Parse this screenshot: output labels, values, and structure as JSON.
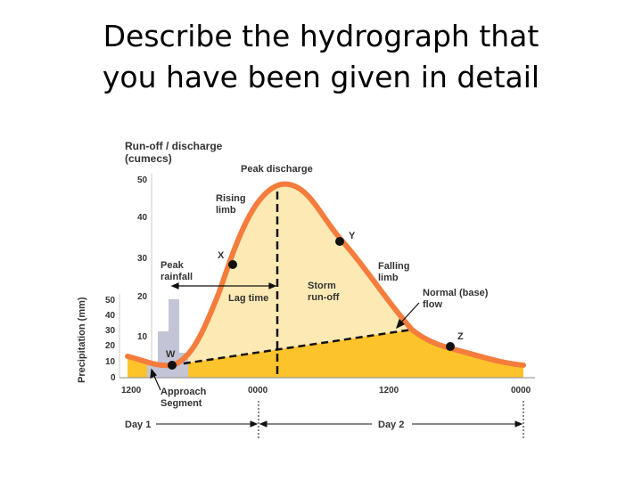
{
  "title_line1": "Describe the hydrograph that",
  "title_line2": "you have been given in detail",
  "y_axis_label_1": "Run-off / discharge",
  "y_axis_label_2": "(cumecs)",
  "y_axis_precip": "Precipitation (mm)",
  "discharge_ticks": [
    "50",
    "40",
    "30",
    "20",
    "10"
  ],
  "precip_ticks": [
    "50",
    "40",
    "30",
    "20",
    "10",
    "0"
  ],
  "x_ticks": [
    "1200",
    "0000",
    "1200",
    "0000"
  ],
  "days": [
    "Day 1",
    "Day 2"
  ],
  "labels": {
    "peak_discharge": "Peak discharge",
    "rising_1": "Rising",
    "rising_2": "limb",
    "falling_1": "Falling",
    "falling_2": "limb",
    "peak_rain_1": "Peak",
    "peak_rain_2": "rainfall",
    "lag_time": "Lag time",
    "storm_1": "Storm",
    "storm_2": "run-off",
    "base_1": "Normal (base)",
    "base_2": "flow",
    "approach_1": "Approach",
    "approach_2": "Segment"
  },
  "points": {
    "w": "W",
    "x": "X",
    "y": "Y",
    "z": "Z"
  },
  "colors": {
    "curve": "#f47c3c",
    "storm_fill": "#fde9b4",
    "base_fill": "#fdc32a",
    "rain": "#c3c4d6"
  }
}
